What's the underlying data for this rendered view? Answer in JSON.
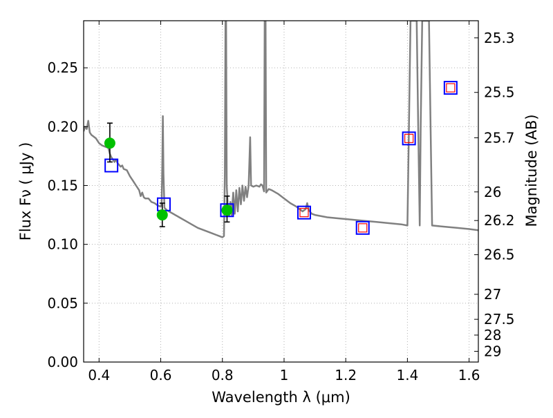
{
  "chart_data": {
    "type": "scatter",
    "title": "",
    "xlabel": "Wavelength  λ (μm)",
    "ylabel": "Flux  Fν  ( μJy )",
    "ylabel_right": "Magnitude (AB)",
    "xlim": [
      0.35,
      1.63
    ],
    "ylim": [
      0.0,
      0.29
    ],
    "grid": true,
    "x_ticks": [
      {
        "value": 0.4,
        "label": "0.4"
      },
      {
        "value": 0.6,
        "label": "0.6"
      },
      {
        "value": 0.8,
        "label": "0.8"
      },
      {
        "value": 1.0,
        "label": "1"
      },
      {
        "value": 1.2,
        "label": "1.2"
      },
      {
        "value": 1.4,
        "label": "1.4"
      },
      {
        "value": 1.6,
        "label": "1.6"
      }
    ],
    "y_ticks": [
      {
        "value": 0.0,
        "label": "0.00"
      },
      {
        "value": 0.05,
        "label": "0.05"
      },
      {
        "value": 0.1,
        "label": "0.10"
      },
      {
        "value": 0.15,
        "label": "0.15"
      },
      {
        "value": 0.2,
        "label": "0.20"
      },
      {
        "value": 0.25,
        "label": "0.25"
      }
    ],
    "right_ticks": [
      {
        "value": 25.3,
        "label": "25.3"
      },
      {
        "value": 25.5,
        "label": "25.5"
      },
      {
        "value": 25.7,
        "label": "25.7"
      },
      {
        "value": 26.0,
        "label": "26"
      },
      {
        "value": 26.2,
        "label": "26.2"
      },
      {
        "value": 26.5,
        "label": "26.5"
      },
      {
        "value": 27.0,
        "label": "27"
      },
      {
        "value": 27.5,
        "label": "27.5"
      },
      {
        "value": 28.0,
        "label": "28"
      },
      {
        "value": 29.0,
        "label": "29"
      }
    ],
    "colors": {
      "template": "#808080",
      "observed": "#00c000",
      "model_box": "#0000ff",
      "model_inner": "#ff0000",
      "errorbar": "#000000",
      "grid": "#b0b0b0"
    },
    "series": [
      {
        "role": "template",
        "style": "line",
        "points": [
          [
            0.35,
            0.196
          ],
          [
            0.355,
            0.2
          ],
          [
            0.36,
            0.198
          ],
          [
            0.365,
            0.205
          ],
          [
            0.37,
            0.195
          ],
          [
            0.375,
            0.193
          ],
          [
            0.38,
            0.192
          ],
          [
            0.39,
            0.19
          ],
          [
            0.395,
            0.188
          ],
          [
            0.4,
            0.186
          ],
          [
            0.41,
            0.184
          ],
          [
            0.42,
            0.183
          ],
          [
            0.43,
            0.182
          ],
          [
            0.435,
            0.177
          ],
          [
            0.44,
            0.174
          ],
          [
            0.45,
            0.17
          ],
          [
            0.455,
            0.172
          ],
          [
            0.46,
            0.169
          ],
          [
            0.47,
            0.166
          ],
          [
            0.475,
            0.167
          ],
          [
            0.48,
            0.164
          ],
          [
            0.49,
            0.163
          ],
          [
            0.5,
            0.158
          ],
          [
            0.51,
            0.154
          ],
          [
            0.52,
            0.15
          ],
          [
            0.53,
            0.146
          ],
          [
            0.535,
            0.141
          ],
          [
            0.54,
            0.144
          ],
          [
            0.545,
            0.14
          ],
          [
            0.55,
            0.139
          ],
          [
            0.56,
            0.139
          ],
          [
            0.57,
            0.136
          ],
          [
            0.58,
            0.135
          ],
          [
            0.59,
            0.133
          ],
          [
            0.6,
            0.132
          ],
          [
            0.603,
            0.135
          ],
          [
            0.605,
            0.168
          ],
          [
            0.607,
            0.209
          ],
          [
            0.609,
            0.16
          ],
          [
            0.612,
            0.131
          ],
          [
            0.62,
            0.129
          ],
          [
            0.64,
            0.126
          ],
          [
            0.66,
            0.123
          ],
          [
            0.68,
            0.12
          ],
          [
            0.7,
            0.117
          ],
          [
            0.72,
            0.114
          ],
          [
            0.74,
            0.112
          ],
          [
            0.76,
            0.11
          ],
          [
            0.78,
            0.108
          ],
          [
            0.79,
            0.107
          ],
          [
            0.8,
            0.106
          ],
          [
            0.805,
            0.107
          ],
          [
            0.808,
            0.16
          ],
          [
            0.81,
            0.29
          ],
          [
            0.812,
            0.29
          ],
          [
            0.814,
            0.15
          ],
          [
            0.818,
            0.13
          ],
          [
            0.822,
            0.124
          ],
          [
            0.826,
            0.136
          ],
          [
            0.83,
            0.125
          ],
          [
            0.835,
            0.144
          ],
          [
            0.84,
            0.126
          ],
          [
            0.845,
            0.146
          ],
          [
            0.85,
            0.128
          ],
          [
            0.855,
            0.148
          ],
          [
            0.86,
            0.134
          ],
          [
            0.865,
            0.15
          ],
          [
            0.87,
            0.137
          ],
          [
            0.875,
            0.149
          ],
          [
            0.88,
            0.14
          ],
          [
            0.885,
            0.15
          ],
          [
            0.89,
            0.191
          ],
          [
            0.893,
            0.15
          ],
          [
            0.9,
            0.149
          ],
          [
            0.91,
            0.15
          ],
          [
            0.92,
            0.149
          ],
          [
            0.925,
            0.151
          ],
          [
            0.93,
            0.15
          ],
          [
            0.935,
            0.145
          ],
          [
            0.937,
            0.29
          ],
          [
            0.94,
            0.29
          ],
          [
            0.942,
            0.144
          ],
          [
            0.95,
            0.147
          ],
          [
            0.96,
            0.146
          ],
          [
            0.98,
            0.143
          ],
          [
            1.0,
            0.139
          ],
          [
            1.02,
            0.135
          ],
          [
            1.04,
            0.132
          ],
          [
            1.06,
            0.128
          ],
          [
            1.07,
            0.13
          ],
          [
            1.075,
            0.135
          ],
          [
            1.08,
            0.129
          ],
          [
            1.09,
            0.126
          ],
          [
            1.1,
            0.125
          ],
          [
            1.14,
            0.123
          ],
          [
            1.18,
            0.122
          ],
          [
            1.22,
            0.121
          ],
          [
            1.26,
            0.12
          ],
          [
            1.3,
            0.119
          ],
          [
            1.34,
            0.118
          ],
          [
            1.38,
            0.117
          ],
          [
            1.4,
            0.116
          ],
          [
            1.405,
            0.2
          ],
          [
            1.41,
            0.29
          ],
          [
            1.43,
            0.29
          ],
          [
            1.435,
            0.2
          ],
          [
            1.44,
            0.116
          ],
          [
            1.443,
            0.2
          ],
          [
            1.448,
            0.29
          ],
          [
            1.47,
            0.29
          ],
          [
            1.475,
            0.2
          ],
          [
            1.48,
            0.116
          ],
          [
            1.52,
            0.115
          ],
          [
            1.56,
            0.114
          ],
          [
            1.6,
            0.113
          ],
          [
            1.63,
            0.112
          ]
        ]
      },
      {
        "role": "observed",
        "style": "points-with-errorbars",
        "points": [
          {
            "x": 0.435,
            "y": 0.186,
            "yerr_low": 0.17,
            "yerr_high": 0.203
          },
          {
            "x": 0.605,
            "y": 0.125,
            "yerr_low": 0.115,
            "yerr_high": 0.135
          },
          {
            "x": 0.815,
            "y": 0.129,
            "yerr_low": 0.119,
            "yerr_high": 0.141
          }
        ]
      },
      {
        "role": "model",
        "style": "squares",
        "points": [
          {
            "x": 0.44,
            "y": 0.167,
            "inner": false
          },
          {
            "x": 0.61,
            "y": 0.134,
            "inner": false
          },
          {
            "x": 0.815,
            "y": 0.129,
            "inner": false
          },
          {
            "x": 1.065,
            "y": 0.127,
            "inner": true
          },
          {
            "x": 1.255,
            "y": 0.114,
            "inner": true
          },
          {
            "x": 1.405,
            "y": 0.19,
            "inner": true
          },
          {
            "x": 1.54,
            "y": 0.233,
            "inner": true
          }
        ]
      }
    ]
  }
}
